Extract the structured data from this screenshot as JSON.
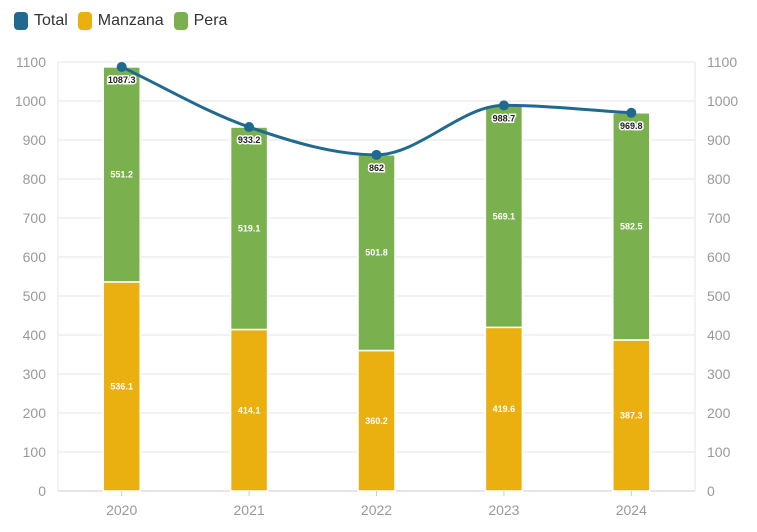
{
  "legend": [
    {
      "name": "Total",
      "color": "#1f6a8e"
    },
    {
      "name": "Manzana",
      "color": "#eab010"
    },
    {
      "name": "Pera",
      "color": "#7ab14e"
    }
  ],
  "chart_data": {
    "type": "bar",
    "stacked": true,
    "categories": [
      "2020",
      "2021",
      "2022",
      "2023",
      "2024"
    ],
    "series": [
      {
        "name": "Manzana",
        "type": "bar",
        "color": "#eab010",
        "values": [
          536.1,
          414.1,
          360.2,
          419.6,
          387.3
        ]
      },
      {
        "name": "Pera",
        "type": "bar",
        "color": "#7ab14e",
        "values": [
          551.2,
          519.1,
          501.8,
          569.1,
          582.5
        ]
      },
      {
        "name": "Total",
        "type": "line",
        "color": "#1f6a8e",
        "values": [
          1087.3,
          933.2,
          862,
          988.7,
          969.8
        ]
      }
    ],
    "ylim": [
      0,
      1100
    ],
    "yticks": [
      0,
      100,
      200,
      300,
      400,
      500,
      600,
      700,
      800,
      900,
      1000,
      1100
    ],
    "secondary_y": true,
    "grid": true,
    "legend_position": "top-left"
  }
}
